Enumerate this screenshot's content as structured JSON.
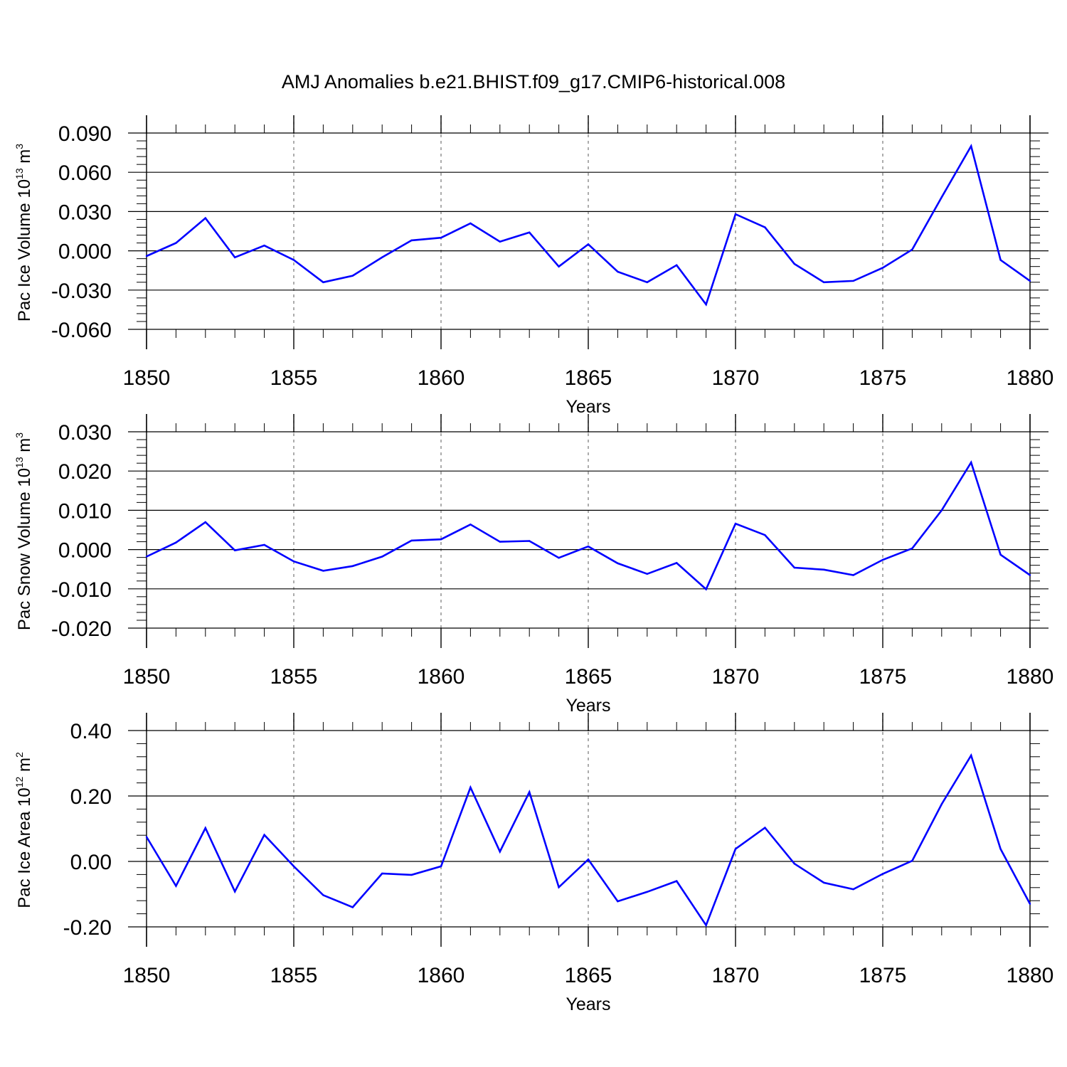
{
  "title": "AMJ Anomalies b.e21.BHIST.f09_g17.CMIP6-historical.008",
  "colors": {
    "line": "#0000ff",
    "axis": "#000000",
    "grid": "#808080"
  },
  "chart_data": [
    {
      "type": "line",
      "title": "AMJ Anomalies b.e21.BHIST.f09_g17.CMIP6-historical.008",
      "xlabel": "Years",
      "ylabel": {
        "base": "Pac Ice Volume 10",
        "exp1": "13",
        "unit": " m",
        "exp2": "3"
      },
      "x_tick_labels": [
        "1850",
        "1855",
        "1860",
        "1865",
        "1870",
        "1875",
        "1880"
      ],
      "x_ticks": [
        1850,
        1855,
        1860,
        1865,
        1870,
        1875,
        1880
      ],
      "y_tick_labels": [
        "0.090",
        "0.060",
        "0.030",
        "0.000",
        "-0.030",
        "-0.060"
      ],
      "y_ticks": [
        0.09,
        0.06,
        0.03,
        0.0,
        -0.03,
        -0.06
      ],
      "xlim": [
        1850,
        1880
      ],
      "ylim": [
        -0.06,
        0.09
      ],
      "grid": "dashed vertical at major x ticks",
      "x": [
        1850,
        1851,
        1852,
        1853,
        1854,
        1855,
        1856,
        1857,
        1858,
        1859,
        1860,
        1861,
        1862,
        1863,
        1864,
        1865,
        1866,
        1867,
        1868,
        1869,
        1870,
        1871,
        1872,
        1873,
        1874,
        1875,
        1876,
        1877,
        1878,
        1879,
        1880
      ],
      "values": [
        -0.004,
        0.006,
        0.025,
        -0.005,
        0.004,
        -0.007,
        -0.024,
        -0.019,
        -0.005,
        0.008,
        0.01,
        0.021,
        0.007,
        0.014,
        -0.012,
        0.005,
        -0.016,
        -0.024,
        -0.011,
        -0.041,
        0.028,
        0.018,
        -0.01,
        -0.024,
        -0.023,
        -0.013,
        0.001,
        0.041,
        0.08,
        -0.007,
        -0.023
      ]
    },
    {
      "type": "line",
      "xlabel": "Years",
      "ylabel": {
        "base": "Pac Snow Volume 10",
        "exp1": "13",
        "unit": " m",
        "exp2": "3"
      },
      "x_tick_labels": [
        "1850",
        "1855",
        "1860",
        "1865",
        "1870",
        "1875",
        "1880"
      ],
      "x_ticks": [
        1850,
        1855,
        1860,
        1865,
        1870,
        1875,
        1880
      ],
      "y_tick_labels": [
        "0.030",
        "0.020",
        "0.010",
        "0.000",
        "-0.010",
        "-0.020"
      ],
      "y_ticks": [
        0.03,
        0.02,
        0.01,
        0.0,
        -0.01,
        -0.02
      ],
      "xlim": [
        1850,
        1880
      ],
      "ylim": [
        -0.02,
        0.03
      ],
      "grid": "dashed vertical at major x ticks",
      "x": [
        1850,
        1851,
        1852,
        1853,
        1854,
        1855,
        1856,
        1857,
        1858,
        1859,
        1860,
        1861,
        1862,
        1863,
        1864,
        1865,
        1866,
        1867,
        1868,
        1869,
        1870,
        1871,
        1872,
        1873,
        1874,
        1875,
        1876,
        1877,
        1878,
        1879,
        1880
      ],
      "values": [
        -0.0018,
        0.0018,
        0.007,
        -0.0002,
        0.0012,
        -0.003,
        -0.0054,
        -0.0042,
        -0.0018,
        0.0023,
        0.0026,
        0.0064,
        0.002,
        0.0022,
        -0.0021,
        0.0008,
        -0.0035,
        -0.0062,
        -0.0034,
        -0.0101,
        0.0066,
        0.0037,
        -0.0046,
        -0.0051,
        -0.0065,
        -0.0026,
        0.0003,
        0.01,
        0.0222,
        -0.0013,
        -0.0065
      ]
    },
    {
      "type": "line",
      "xlabel": "Years",
      "ylabel": {
        "base": "Pac Ice Area 10",
        "exp1": "12",
        "unit": " m",
        "exp2": "2"
      },
      "x_tick_labels": [
        "1850",
        "1855",
        "1860",
        "1865",
        "1870",
        "1875",
        "1880"
      ],
      "x_ticks": [
        1850,
        1855,
        1860,
        1865,
        1870,
        1875,
        1880
      ],
      "y_tick_labels": [
        "0.40",
        "0.20",
        "0.00",
        "-0.20"
      ],
      "y_ticks": [
        0.4,
        0.2,
        0.0,
        -0.2
      ],
      "xlim": [
        1850,
        1880
      ],
      "ylim": [
        -0.2,
        0.4
      ],
      "grid": "dashed vertical at major x ticks",
      "x": [
        1850,
        1851,
        1852,
        1853,
        1854,
        1855,
        1856,
        1857,
        1858,
        1859,
        1860,
        1861,
        1862,
        1863,
        1864,
        1865,
        1866,
        1867,
        1868,
        1869,
        1870,
        1871,
        1872,
        1873,
        1874,
        1875,
        1876,
        1877,
        1878,
        1879,
        1880
      ],
      "values": [
        0.075,
        -0.075,
        0.102,
        -0.092,
        0.081,
        -0.015,
        -0.103,
        -0.14,
        -0.037,
        -0.041,
        -0.015,
        0.226,
        0.03,
        0.212,
        -0.079,
        0.006,
        -0.122,
        -0.093,
        -0.06,
        -0.195,
        0.038,
        0.103,
        -0.007,
        -0.065,
        -0.085,
        -0.038,
        0.002,
        0.175,
        0.324,
        0.038,
        -0.13
      ]
    }
  ]
}
